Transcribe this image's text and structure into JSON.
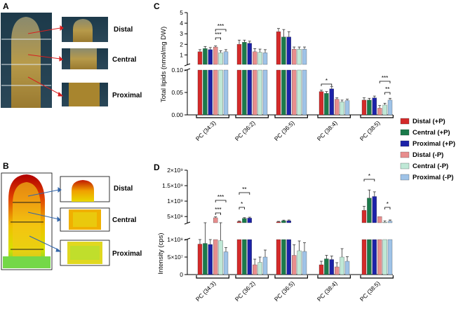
{
  "panels": {
    "A": {
      "letter": "A",
      "labels": [
        "Distal",
        "Central",
        "Proximal"
      ]
    },
    "B": {
      "letter": "B",
      "labels": [
        "Distal",
        "Central",
        "Proximal"
      ]
    }
  },
  "legend": [
    {
      "label": "Distal (+P)",
      "color": "#d42a2a"
    },
    {
      "label": "Central (+P)",
      "color": "#1a7a4a"
    },
    {
      "label": "Proximal (+P)",
      "color": "#1c22a8"
    },
    {
      "label": "Distal (-P)",
      "color": "#e88d8d"
    },
    {
      "label": "Central (-P)",
      "color": "#bfe8d6"
    },
    {
      "label": "Proximal (-P)",
      "color": "#9fc3e8"
    }
  ],
  "chart_data": [
    {
      "panel": "C",
      "type": "bar",
      "ylabel": "Total lipids (nmol/mg DW)",
      "categories": [
        "PC (34:3)",
        "PC (36:2)",
        "PC (36:5)",
        "PC (38:4)",
        "PC (38:5)"
      ],
      "axis_break": {
        "lower": [
          0,
          0.1
        ],
        "upper": [
          0.1,
          5
        ]
      },
      "lower_ticks": [
        "0.00",
        "0.05",
        "0.10"
      ],
      "upper_ticks": [
        "1",
        "2",
        "3",
        "4",
        "5"
      ],
      "series": [
        {
          "name": "Distal (+P)",
          "values": [
            1.3,
            2.0,
            3.2,
            0.052,
            0.033
          ],
          "errors": [
            0.2,
            0.4,
            0.3,
            0.003,
            0.005
          ]
        },
        {
          "name": "Central (+P)",
          "values": [
            1.6,
            2.2,
            2.7,
            0.048,
            0.033
          ],
          "errors": [
            0.2,
            0.2,
            0.7,
            0.004,
            0.004
          ]
        },
        {
          "name": "Proximal (+P)",
          "values": [
            1.5,
            2.1,
            2.7,
            0.058,
            0.038
          ],
          "errors": [
            0.2,
            0.2,
            0.5,
            0.005,
            0.004
          ]
        },
        {
          "name": "Distal (-P)",
          "values": [
            1.75,
            1.3,
            1.55,
            0.035,
            0.015
          ],
          "errors": [
            0.1,
            0.3,
            0.2,
            0.003,
            0.006
          ]
        },
        {
          "name": "Central (-P)",
          "values": [
            1.2,
            1.25,
            1.55,
            0.029,
            0.022
          ],
          "errors": [
            0.2,
            0.3,
            0.2,
            0.004,
            0.004
          ]
        },
        {
          "name": "Proximal (-P)",
          "values": [
            1.3,
            1.2,
            1.55,
            0.032,
            0.033
          ],
          "errors": [
            0.2,
            0.3,
            0.2,
            0.003,
            0.004
          ]
        }
      ],
      "significance": [
        "***",
        "***",
        "*",
        "***",
        "**"
      ]
    },
    {
      "panel": "D",
      "type": "bar",
      "ylabel": "Intensity (cps)",
      "categories": [
        "PC (34:3)",
        "PC (36:2)",
        "PC (36:5)",
        "PC (38:4)",
        "PC (38:5)"
      ],
      "axis_break": {
        "lower": [
          0,
          100000000
        ],
        "upper": [
          300000000,
          2000000000
        ]
      },
      "lower_ticks": [
        "0",
        "5×10⁷",
        "1×10⁸"
      ],
      "upper_ticks": [
        "5×10⁸",
        "1×10⁹",
        "1.5×10⁹",
        "2×10⁹"
      ],
      "series": [
        {
          "name": "Distal (+P)",
          "values": [
            87000000,
            335000000,
            330000000,
            28000000,
            700000000
          ],
          "errors": [
            13000000,
            20000000,
            15000000,
            10000000,
            130000000
          ]
        },
        {
          "name": "Central (+P)",
          "values": [
            89000000,
            440000000,
            365000000,
            45000000,
            1100000000
          ],
          "errors": [
            15000000,
            25000000,
            20000000,
            10000000,
            260000000
          ]
        },
        {
          "name": "Proximal (+P)",
          "values": [
            86000000,
            450000000,
            365000000,
            43000000,
            1150000000
          ],
          "errors": [
            14000000,
            30000000,
            25000000,
            10000000,
            150000000
          ]
        },
        {
          "name": "Distal (-P)",
          "values": [
            460000000,
            28000000,
            55000000,
            22000000,
            500000000
          ],
          "errors": [
            30000000,
            16000000,
            30000000,
            12000000,
            0
          ]
        },
        {
          "name": "Central (-P)",
          "values": [
            97000000,
            35000000,
            68000000,
            50000000,
            320000000
          ],
          "errors": [
            13000000,
            15000000,
            28000000,
            24000000,
            40000000
          ]
        },
        {
          "name": "Proximal (-P)",
          "values": [
            65000000,
            50000000,
            66000000,
            38000000,
            350000000
          ],
          "errors": [
            12000000,
            20000000,
            25000000,
            13000000,
            40000000
          ]
        }
      ],
      "significance": [
        "***",
        "**",
        "*",
        "*"
      ]
    }
  ]
}
